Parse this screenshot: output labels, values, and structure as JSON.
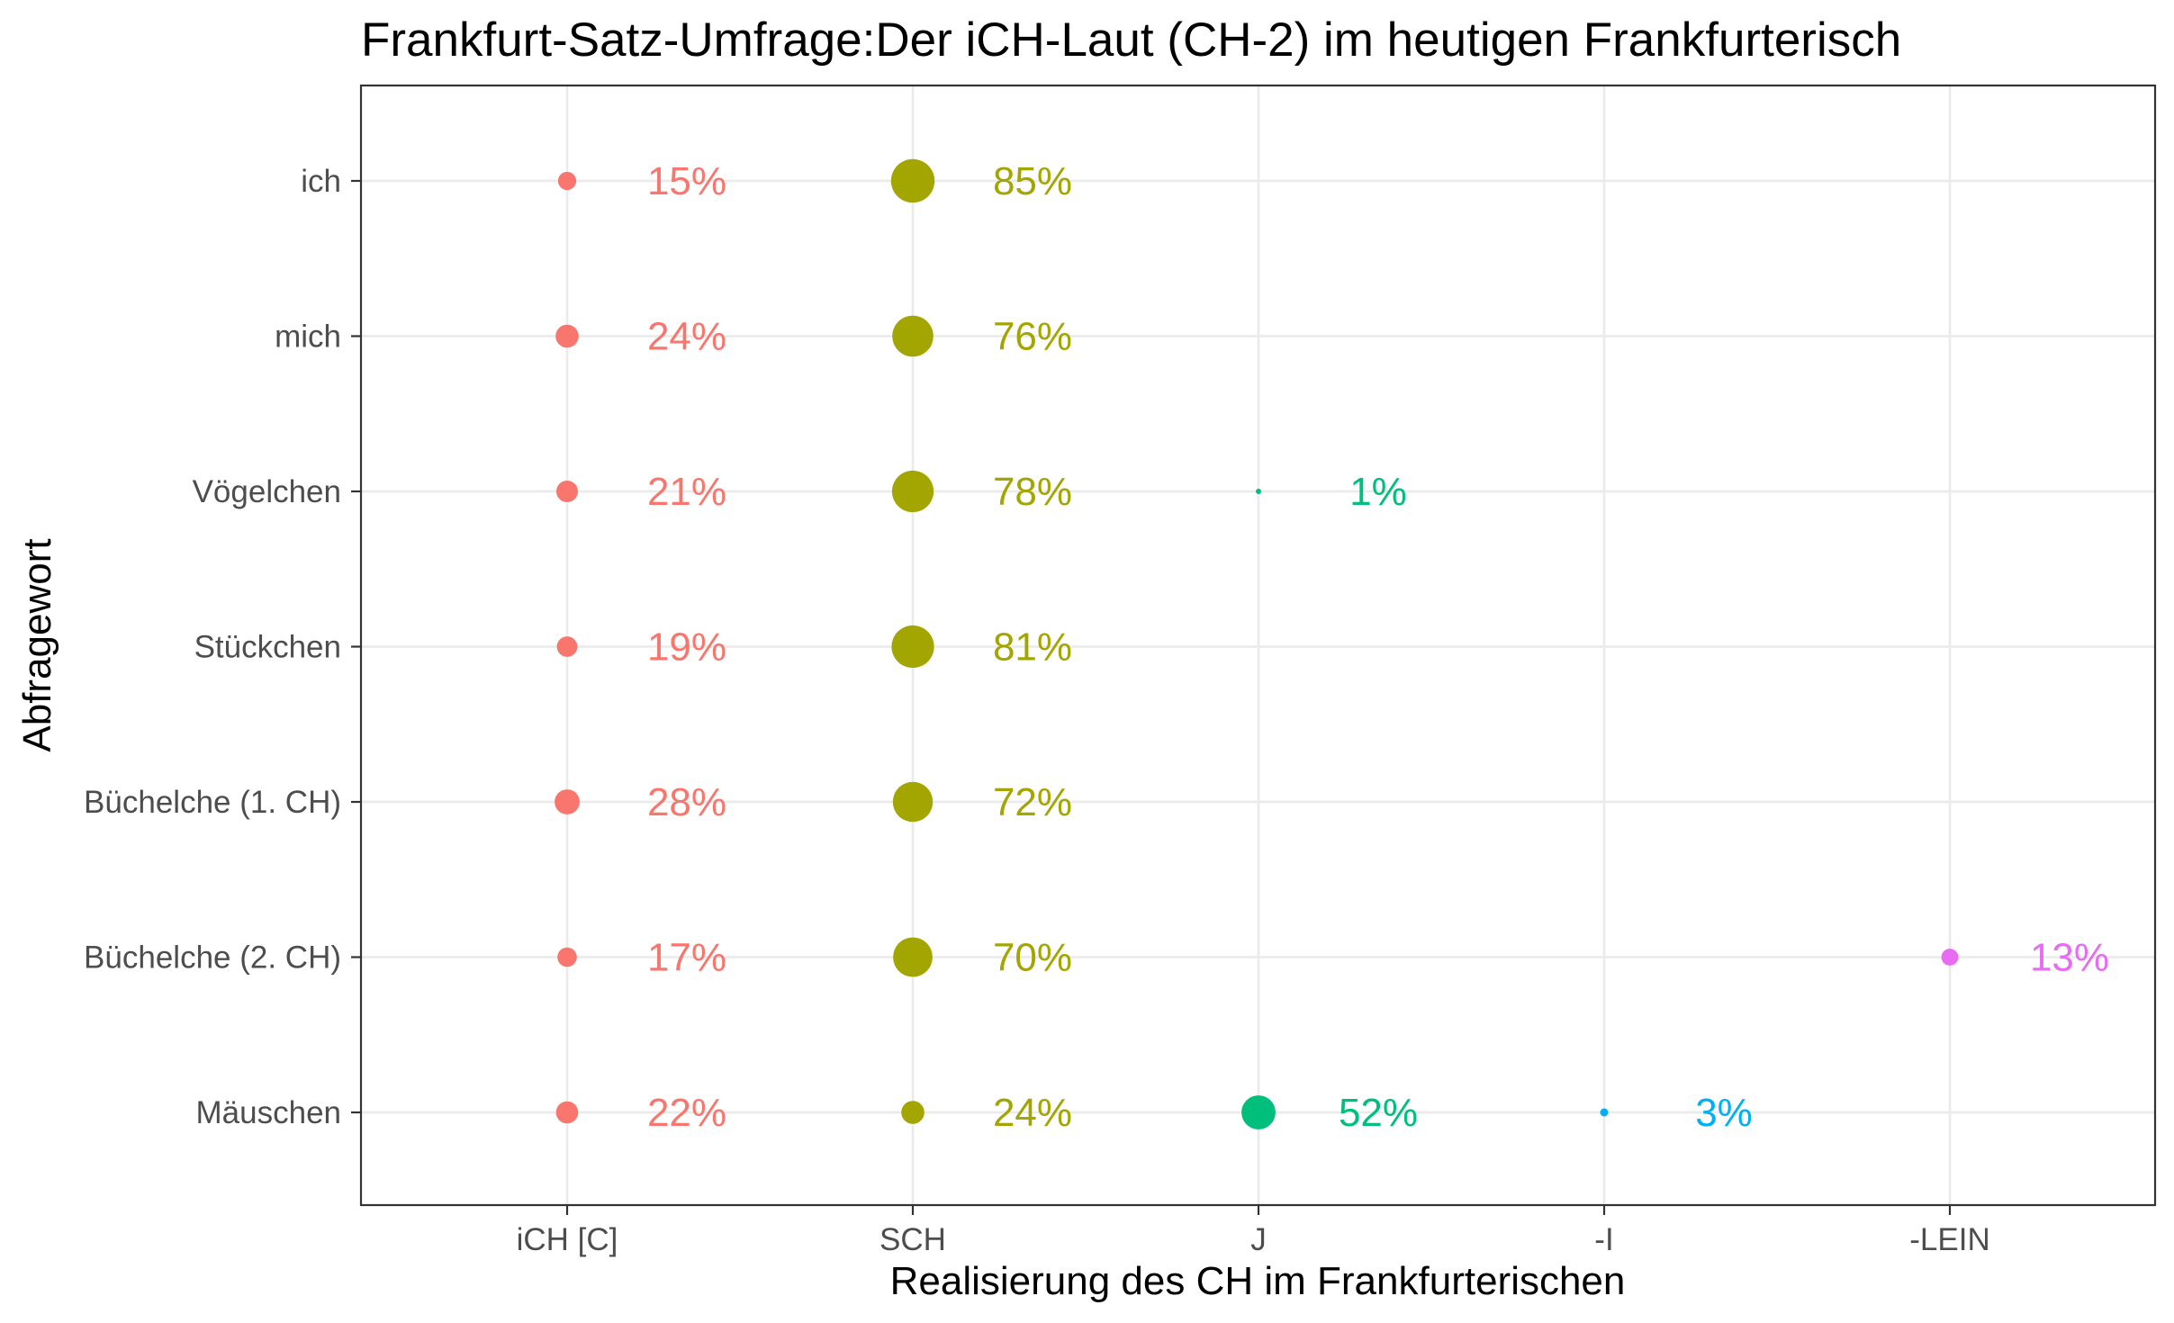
{
  "chart_data": {
    "type": "scatter",
    "title": "Frankfurt-Satz-Umfrage:Der iCH-Laut (CH-2) im heutigen Frankfurterisch",
    "xlabel": "Realisierung des CH im Frankfurterischen",
    "ylabel": "Abfragewort",
    "x_categories": [
      "iCH [C]",
      "SCH",
      "J",
      "-I",
      "-LEIN"
    ],
    "y_categories": [
      "ich",
      "mich",
      "Vögelchen",
      "Stückchen",
      "Büchelche (1. CH)",
      "Büchelche (2. CH)",
      "Mäuschen"
    ],
    "colors": {
      "iCH [C]": "#F8766D",
      "SCH": "#A3A500",
      "J": "#00BF7D",
      "-I": "#00B0F6",
      "-LEIN": "#E76BF3"
    },
    "grid": true,
    "legend": "none",
    "points": [
      {
        "word": "ich",
        "realisation": "iCH [C]",
        "percent": 15,
        "label": "15%"
      },
      {
        "word": "ich",
        "realisation": "SCH",
        "percent": 85,
        "label": "85%"
      },
      {
        "word": "mich",
        "realisation": "iCH [C]",
        "percent": 24,
        "label": "24%"
      },
      {
        "word": "mich",
        "realisation": "SCH",
        "percent": 76,
        "label": "76%"
      },
      {
        "word": "Vögelchen",
        "realisation": "iCH [C]",
        "percent": 21,
        "label": "21%"
      },
      {
        "word": "Vögelchen",
        "realisation": "SCH",
        "percent": 78,
        "label": "78%"
      },
      {
        "word": "Vögelchen",
        "realisation": "J",
        "percent": 1,
        "label": "1%"
      },
      {
        "word": "Stückchen",
        "realisation": "iCH [C]",
        "percent": 19,
        "label": "19%"
      },
      {
        "word": "Stückchen",
        "realisation": "SCH",
        "percent": 81,
        "label": "81%"
      },
      {
        "word": "Büchelche (1. CH)",
        "realisation": "iCH [C]",
        "percent": 28,
        "label": "28%"
      },
      {
        "word": "Büchelche (1. CH)",
        "realisation": "SCH",
        "percent": 72,
        "label": "72%"
      },
      {
        "word": "Büchelche (2. CH)",
        "realisation": "iCH [C]",
        "percent": 17,
        "label": "17%"
      },
      {
        "word": "Büchelche (2. CH)",
        "realisation": "SCH",
        "percent": 70,
        "label": "70%"
      },
      {
        "word": "Büchelche (2. CH)",
        "realisation": "-LEIN",
        "percent": 13,
        "label": "13%"
      },
      {
        "word": "Mäuschen",
        "realisation": "iCH [C]",
        "percent": 22,
        "label": "22%"
      },
      {
        "word": "Mäuschen",
        "realisation": "SCH",
        "percent": 24,
        "label": "24%"
      },
      {
        "word": "Mäuschen",
        "realisation": "J",
        "percent": 52,
        "label": "52%"
      },
      {
        "word": "Mäuschen",
        "realisation": "-I",
        "percent": 3,
        "label": "3%"
      }
    ]
  }
}
